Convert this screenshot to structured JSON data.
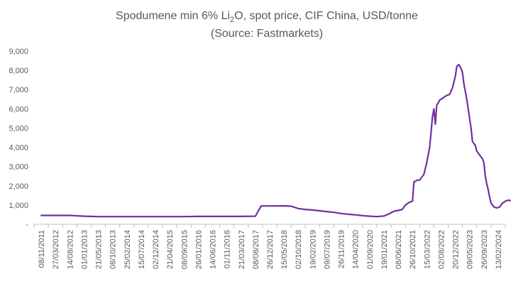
{
  "chart_data": {
    "type": "line",
    "title": {
      "prefix": "Spodumene min 6% Li",
      "subscript": "2",
      "suffix": "O, spot price, CIF China, USD/tonne",
      "line2": "(Source: Fastmarkets)"
    },
    "xlabel": "",
    "ylabel": "",
    "ylim": [
      0,
      9000
    ],
    "y_ticks": [
      0,
      1000,
      2000,
      3000,
      4000,
      5000,
      6000,
      7000,
      8000,
      9000
    ],
    "y_tick_labels": [
      "-",
      "1,000",
      "2,000",
      "3,000",
      "4,000",
      "5,000",
      "6,000",
      "7,000",
      "8,000",
      "9,000"
    ],
    "x_tick_labels": [
      "08/11/2011",
      "27/03/2012",
      "14/08/2012",
      "01/01/2013",
      "21/05/2013",
      "08/10/2013",
      "25/02/2014",
      "15/07/2014",
      "02/12/2014",
      "21/04/2015",
      "08/09/2015",
      "26/01/2016",
      "14/06/2016",
      "01/11/2016",
      "21/03/2017",
      "08/08/2017",
      "26/12/2017",
      "15/05/2018",
      "02/10/2018",
      "19/02/2019",
      "09/07/2019",
      "26/11/2019",
      "14/04/2020",
      "01/09/2020",
      "19/01/2021",
      "08/06/2021",
      "26/10/2021",
      "15/03/2022",
      "02/08/2022",
      "20/12/2022",
      "09/05/2023",
      "26/09/2023",
      "13/02/2024"
    ],
    "grid": false,
    "legend": "none",
    "line_color": "#7030A0",
    "series": [
      {
        "values": [
          [
            0,
            460
          ],
          [
            2,
            460
          ],
          [
            3,
            420
          ],
          [
            4,
            400
          ],
          [
            6,
            400
          ],
          [
            8,
            400
          ],
          [
            10,
            400
          ],
          [
            11,
            410
          ],
          [
            12,
            410
          ],
          [
            14,
            410
          ],
          [
            15,
            420
          ],
          [
            15.4,
            950
          ],
          [
            16,
            950
          ],
          [
            17,
            960
          ],
          [
            17.5,
            940
          ],
          [
            18,
            820
          ],
          [
            18.5,
            770
          ],
          [
            19,
            740
          ],
          [
            19.5,
            700
          ],
          [
            20,
            660
          ],
          [
            20.5,
            620
          ],
          [
            21,
            560
          ],
          [
            21.5,
            520
          ],
          [
            22,
            490
          ],
          [
            22.5,
            450
          ],
          [
            23,
            420
          ],
          [
            23.5,
            400
          ],
          [
            24,
            430
          ],
          [
            24.3,
            520
          ],
          [
            24.7,
            680
          ],
          [
            25,
            720
          ],
          [
            25.3,
            780
          ],
          [
            25.5,
            1000
          ],
          [
            25.8,
            1150
          ],
          [
            26,
            1200
          ],
          [
            26.1,
            2200
          ],
          [
            26.3,
            2280
          ],
          [
            26.5,
            2300
          ],
          [
            26.8,
            2600
          ],
          [
            27,
            3200
          ],
          [
            27.2,
            4000
          ],
          [
            27.4,
            5600
          ],
          [
            27.5,
            6000
          ],
          [
            27.6,
            5200
          ],
          [
            27.7,
            6200
          ],
          [
            27.8,
            6300
          ],
          [
            27.9,
            6450
          ],
          [
            28,
            6500
          ],
          [
            28.2,
            6600
          ],
          [
            28.4,
            6700
          ],
          [
            28.6,
            6750
          ],
          [
            28.8,
            7100
          ],
          [
            29,
            7700
          ],
          [
            29.1,
            8200
          ],
          [
            29.25,
            8300
          ],
          [
            29.4,
            8100
          ],
          [
            29.5,
            7900
          ],
          [
            29.6,
            7300
          ],
          [
            29.8,
            6500
          ],
          [
            30,
            5500
          ],
          [
            30.1,
            5000
          ],
          [
            30.2,
            4300
          ],
          [
            30.4,
            4100
          ],
          [
            30.5,
            3800
          ],
          [
            30.7,
            3600
          ],
          [
            30.9,
            3400
          ],
          [
            31,
            3200
          ],
          [
            31.1,
            2500
          ],
          [
            31.2,
            2100
          ],
          [
            31.3,
            1800
          ],
          [
            31.4,
            1400
          ],
          [
            31.5,
            1100
          ],
          [
            31.7,
            900
          ],
          [
            31.9,
            850
          ],
          [
            32.1,
            900
          ],
          [
            32.3,
            1100
          ],
          [
            32.5,
            1200
          ],
          [
            32.7,
            1250
          ],
          [
            32.9,
            1230
          ]
        ]
      }
    ]
  }
}
